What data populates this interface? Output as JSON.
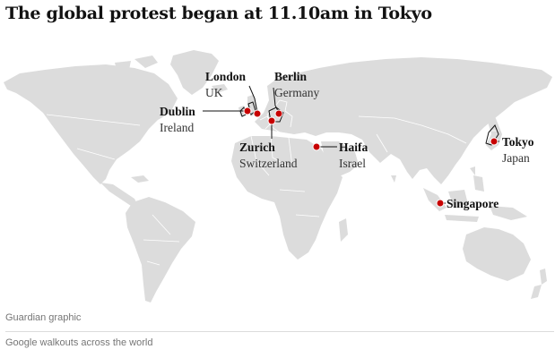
{
  "title": "The global protest began at 11.10am in Tokyo",
  "map": {
    "land_color": "#dcdcdc",
    "marker_color": "#c70000",
    "locations": [
      {
        "city": "London",
        "country": "UK"
      },
      {
        "city": "Berlin",
        "country": "Germany"
      },
      {
        "city": "Dublin",
        "country": "Ireland"
      },
      {
        "city": "Zurich",
        "country": "Switzerland"
      },
      {
        "city": "Haifa",
        "country": "Israel"
      },
      {
        "city": "Tokyo",
        "country": "Japan"
      },
      {
        "city": "Singapore",
        "country": ""
      }
    ]
  },
  "source": "Guardian graphic",
  "caption": "Google walkouts across the world"
}
